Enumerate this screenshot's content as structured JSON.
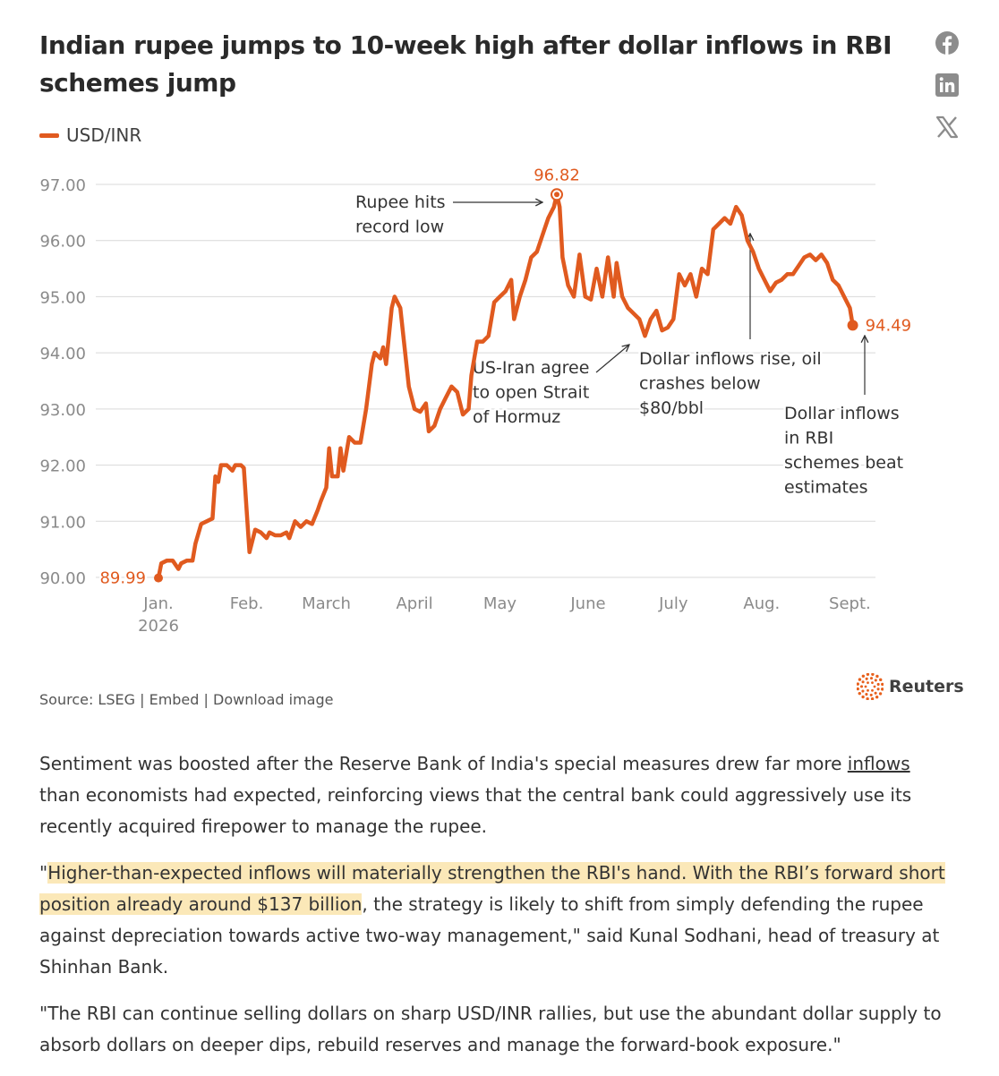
{
  "article": {
    "title": "Indian rupee jumps to 10-week high after dollar inflows in RBI schemes jump",
    "legend_label": "USD/INR",
    "source_prefix": "Source: LSEG |",
    "embed_label": "Embed",
    "download_label": "| Download image",
    "brand": "Reuters",
    "para1_start": "Sentiment was boosted after the Reserve Bank of India's special measures drew far more ",
    "para1_link": "inflows",
    "para1_end": " than economists had expected, reinforcing views that the central bank could aggressively use its recently acquired firepower to manage the rupee.",
    "para2_start": "\"",
    "para2_highlight": "Higher-than-expected inflows will materially strengthen the RBI's hand. With the RBI’s forward short position already around $137 billion",
    "para2_end": ", the strategy is likely to shift from simply defending the rupee against depreciation towards active two-way management,\" said Kunal Sodhani, head of treasury at Shinhan Bank.",
    "para3": "\"The RBI can continue selling dollars on sharp USD/INR rallies, but use the abundant dollar supply to absorb dollars on deeper dips, rebuild reserves and manage the forward-book exposure.\""
  },
  "social": [
    {
      "icon": "facebook-icon"
    },
    {
      "icon": "linkedin-icon"
    },
    {
      "icon": "x-icon"
    }
  ],
  "colors": {
    "line": "#e05a1f",
    "grid": "#d9d9d9",
    "tick": "#8a8a8a",
    "annot": "#333333",
    "highlight": "#fbe8b8"
  },
  "chart_data": {
    "type": "line",
    "title": "Indian rupee jumps to 10-week high after dollar inflows in RBI schemes jump",
    "series_name": "USD/INR",
    "ylim": [
      90,
      97
    ],
    "yticks": [
      "90.00",
      "91.00",
      "92.00",
      "93.00",
      "94.00",
      "95.00",
      "96.00",
      "97.00"
    ],
    "xlim": [
      "2026-01-01",
      "2026-09-10"
    ],
    "xticks": [
      {
        "label": "Jan.",
        "sub": "2026",
        "date": "2026-01-01"
      },
      {
        "label": "Feb.",
        "sub": "",
        "date": "2026-02-01"
      },
      {
        "label": "March",
        "sub": "",
        "date": "2026-03-01"
      },
      {
        "label": "April",
        "sub": "",
        "date": "2026-04-01"
      },
      {
        "label": "May",
        "sub": "",
        "date": "2026-05-01"
      },
      {
        "label": "June",
        "sub": "",
        "date": "2026-06-01"
      },
      {
        "label": "July",
        "sub": "",
        "date": "2026-07-01"
      },
      {
        "label": "Aug.",
        "sub": "",
        "date": "2026-08-01"
      },
      {
        "label": "Sept.",
        "sub": "",
        "date": "2026-09-01"
      }
    ],
    "grid": true,
    "data": [
      [
        "2026-01-01",
        89.99
      ],
      [
        "2026-01-02",
        90.25
      ],
      [
        "2026-01-04",
        90.3
      ],
      [
        "2026-01-06",
        90.3
      ],
      [
        "2026-01-08",
        90.15
      ],
      [
        "2026-01-09",
        90.25
      ],
      [
        "2026-01-11",
        90.3
      ],
      [
        "2026-01-13",
        90.3
      ],
      [
        "2026-01-14",
        90.6
      ],
      [
        "2026-01-16",
        90.95
      ],
      [
        "2026-01-18",
        91.0
      ],
      [
        "2026-01-20",
        91.05
      ],
      [
        "2026-01-21",
        91.8
      ],
      [
        "2026-01-22",
        91.7
      ],
      [
        "2026-01-23",
        92.0
      ],
      [
        "2026-01-25",
        92.0
      ],
      [
        "2026-01-27",
        91.9
      ],
      [
        "2026-01-28",
        92.0
      ],
      [
        "2026-01-30",
        92.0
      ],
      [
        "2026-01-31",
        91.95
      ],
      [
        "2026-02-01",
        91.2
      ],
      [
        "2026-02-02",
        90.45
      ],
      [
        "2026-02-04",
        90.85
      ],
      [
        "2026-02-06",
        90.8
      ],
      [
        "2026-02-08",
        90.7
      ],
      [
        "2026-02-09",
        90.8
      ],
      [
        "2026-02-11",
        90.75
      ],
      [
        "2026-02-13",
        90.75
      ],
      [
        "2026-02-15",
        90.8
      ],
      [
        "2026-02-16",
        90.7
      ],
      [
        "2026-02-18",
        91.0
      ],
      [
        "2026-02-20",
        90.9
      ],
      [
        "2026-02-22",
        91.0
      ],
      [
        "2026-02-24",
        90.95
      ],
      [
        "2026-02-26",
        91.2
      ],
      [
        "2026-02-27",
        91.35
      ],
      [
        "2026-03-01",
        91.6
      ],
      [
        "2026-03-02",
        92.3
      ],
      [
        "2026-03-03",
        91.8
      ],
      [
        "2026-03-05",
        91.8
      ],
      [
        "2026-03-06",
        92.3
      ],
      [
        "2026-03-07",
        91.9
      ],
      [
        "2026-03-09",
        92.5
      ],
      [
        "2026-03-11",
        92.4
      ],
      [
        "2026-03-13",
        92.4
      ],
      [
        "2026-03-15",
        93.0
      ],
      [
        "2026-03-17",
        93.8
      ],
      [
        "2026-03-18",
        94.0
      ],
      [
        "2026-03-20",
        93.9
      ],
      [
        "2026-03-21",
        94.1
      ],
      [
        "2026-03-22",
        93.8
      ],
      [
        "2026-03-24",
        94.8
      ],
      [
        "2026-03-25",
        95.0
      ],
      [
        "2026-03-27",
        94.8
      ],
      [
        "2026-03-30",
        93.4
      ],
      [
        "2026-04-01",
        93.0
      ],
      [
        "2026-04-03",
        92.95
      ],
      [
        "2026-04-05",
        93.1
      ],
      [
        "2026-04-06",
        92.6
      ],
      [
        "2026-04-08",
        92.7
      ],
      [
        "2026-04-10",
        93.0
      ],
      [
        "2026-04-12",
        93.2
      ],
      [
        "2026-04-14",
        93.4
      ],
      [
        "2026-04-16",
        93.3
      ],
      [
        "2026-04-18",
        92.9
      ],
      [
        "2026-04-20",
        93.0
      ],
      [
        "2026-04-21",
        93.6
      ],
      [
        "2026-04-23",
        94.2
      ],
      [
        "2026-04-25",
        94.2
      ],
      [
        "2026-04-27",
        94.3
      ],
      [
        "2026-04-29",
        94.9
      ],
      [
        "2026-05-01",
        95.0
      ],
      [
        "2026-05-03",
        95.1
      ],
      [
        "2026-05-05",
        95.3
      ],
      [
        "2026-05-06",
        94.6
      ],
      [
        "2026-05-08",
        95.0
      ],
      [
        "2026-05-10",
        95.3
      ],
      [
        "2026-05-12",
        95.7
      ],
      [
        "2026-05-14",
        95.8
      ],
      [
        "2026-05-16",
        96.1
      ],
      [
        "2026-05-18",
        96.4
      ],
      [
        "2026-05-20",
        96.6
      ],
      [
        "2026-05-21",
        96.82
      ],
      [
        "2026-05-22",
        96.6
      ],
      [
        "2026-05-23",
        95.7
      ],
      [
        "2026-05-25",
        95.2
      ],
      [
        "2026-05-27",
        95.0
      ],
      [
        "2026-05-29",
        95.75
      ],
      [
        "2026-05-31",
        95.0
      ],
      [
        "2026-06-02",
        94.95
      ],
      [
        "2026-06-04",
        95.5
      ],
      [
        "2026-06-06",
        95.0
      ],
      [
        "2026-06-08",
        95.7
      ],
      [
        "2026-06-10",
        95.0
      ],
      [
        "2026-06-11",
        95.6
      ],
      [
        "2026-06-13",
        95.0
      ],
      [
        "2026-06-15",
        94.8
      ],
      [
        "2026-06-17",
        94.7
      ],
      [
        "2026-06-19",
        94.6
      ],
      [
        "2026-06-21",
        94.3
      ],
      [
        "2026-06-23",
        94.6
      ],
      [
        "2026-06-25",
        94.75
      ],
      [
        "2026-06-27",
        94.4
      ],
      [
        "2026-06-29",
        94.45
      ],
      [
        "2026-07-01",
        94.6
      ],
      [
        "2026-07-03",
        95.4
      ],
      [
        "2026-07-05",
        95.2
      ],
      [
        "2026-07-07",
        95.4
      ],
      [
        "2026-07-09",
        95.0
      ],
      [
        "2026-07-11",
        95.5
      ],
      [
        "2026-07-13",
        95.4
      ],
      [
        "2026-07-15",
        96.2
      ],
      [
        "2026-07-17",
        96.3
      ],
      [
        "2026-07-19",
        96.4
      ],
      [
        "2026-07-21",
        96.3
      ],
      [
        "2026-07-23",
        96.6
      ],
      [
        "2026-07-25",
        96.45
      ],
      [
        "2026-07-27",
        96.0
      ],
      [
        "2026-07-29",
        95.8
      ],
      [
        "2026-07-31",
        95.5
      ],
      [
        "2026-08-02",
        95.3
      ],
      [
        "2026-08-04",
        95.1
      ],
      [
        "2026-08-06",
        95.25
      ],
      [
        "2026-08-08",
        95.3
      ],
      [
        "2026-08-10",
        95.4
      ],
      [
        "2026-08-12",
        95.4
      ],
      [
        "2026-08-14",
        95.55
      ],
      [
        "2026-08-16",
        95.7
      ],
      [
        "2026-08-18",
        95.75
      ],
      [
        "2026-08-20",
        95.65
      ],
      [
        "2026-08-22",
        95.75
      ],
      [
        "2026-08-24",
        95.6
      ],
      [
        "2026-08-26",
        95.3
      ],
      [
        "2026-08-28",
        95.2
      ],
      [
        "2026-08-30",
        95.0
      ],
      [
        "2026-09-01",
        94.8
      ],
      [
        "2026-09-02",
        94.49
      ]
    ],
    "end_labels": {
      "start": "89.99",
      "peak": "96.82",
      "end": "94.49"
    },
    "annotations": [
      {
        "lines": [
          "Rupee hits",
          "record low"
        ]
      },
      {
        "lines": [
          "US-Iran agree",
          "to open Strait",
          "of Hormuz"
        ]
      },
      {
        "lines": [
          "Dollar inflows rise, oil",
          "crashes below",
          "$80/bbl"
        ]
      },
      {
        "lines": [
          "Dollar inflows",
          "in RBI",
          "schemes beat",
          "estimates"
        ]
      }
    ]
  }
}
